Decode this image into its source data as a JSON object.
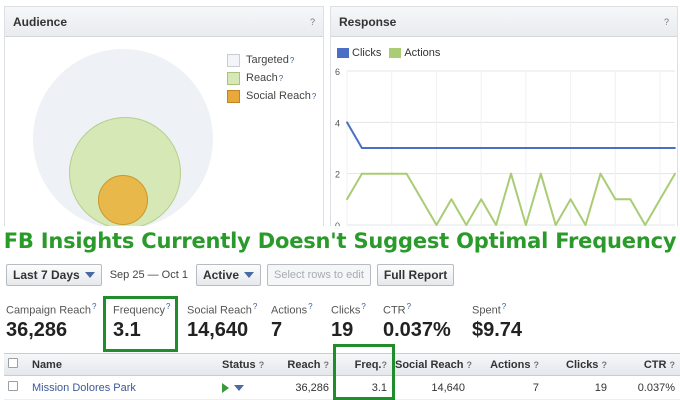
{
  "audience": {
    "title": "Audience",
    "help": "?",
    "legend": [
      {
        "label": "Targeted",
        "help": "?"
      },
      {
        "label": "Reach",
        "help": "?"
      },
      {
        "label": "Social Reach",
        "help": "?"
      }
    ]
  },
  "response": {
    "title": "Response",
    "help": "?",
    "legend_clicks": "Clicks",
    "legend_actions": "Actions"
  },
  "banner": {
    "text": "FB Insights Currently Doesn't Suggest Optimal Frequency"
  },
  "toolbar": {
    "period": "Last 7 Days",
    "date_range": "Sep 25 — Oct 1",
    "status_filter": "Active",
    "select_rows": "Select rows to edit",
    "full_report": "Full Report"
  },
  "stats": [
    {
      "label": "Campaign Reach",
      "help": "?",
      "value": "36,286"
    },
    {
      "label": "Frequency",
      "help": "?",
      "value": "3.1"
    },
    {
      "label": "Social Reach",
      "help": "?",
      "value": "14,640"
    },
    {
      "label": "Actions",
      "help": "?",
      "value": "7"
    },
    {
      "label": "Clicks",
      "help": "?",
      "value": "19"
    },
    {
      "label": "CTR",
      "help": "?",
      "value": "0.037%"
    },
    {
      "label": "Spent",
      "help": "?",
      "value": "$9.74"
    }
  ],
  "table": {
    "headers": {
      "name": "Name",
      "status": "Status",
      "reach": "Reach",
      "freq": "Freq.",
      "social_reach": "Social Reach",
      "actions": "Actions",
      "clicks": "Clicks",
      "ctr": "CTR",
      "help": "?"
    },
    "rows": [
      {
        "name": "Mission Dolores Park",
        "reach": "36,286",
        "freq": "3.1",
        "social_reach": "14,640",
        "actions": "7",
        "clicks": "19",
        "ctr": "0.037%"
      }
    ]
  },
  "colors": {
    "clicks": "#4a6fc4",
    "actions": "#a9cc74",
    "highlight": "#1f8d2a",
    "banner_text": "#2a9a2a"
  },
  "chart_data": {
    "type": "line",
    "title": "",
    "ylim": [
      0,
      6
    ],
    "yticks": [
      0,
      2,
      4,
      6
    ],
    "grid": true,
    "legend_position": "top-left",
    "series": [
      {
        "name": "Clicks",
        "values": [
          4,
          3,
          3,
          3,
          3,
          3,
          3,
          3,
          3,
          3,
          3,
          3,
          3,
          3,
          3,
          3,
          3,
          3,
          3,
          3,
          3,
          3,
          3
        ]
      },
      {
        "name": "Actions",
        "values": [
          1,
          2,
          2,
          2,
          2,
          1,
          0,
          1,
          0,
          1,
          0,
          2,
          0,
          2,
          0,
          1,
          0,
          2,
          1,
          1,
          0,
          1,
          2
        ]
      }
    ]
  }
}
